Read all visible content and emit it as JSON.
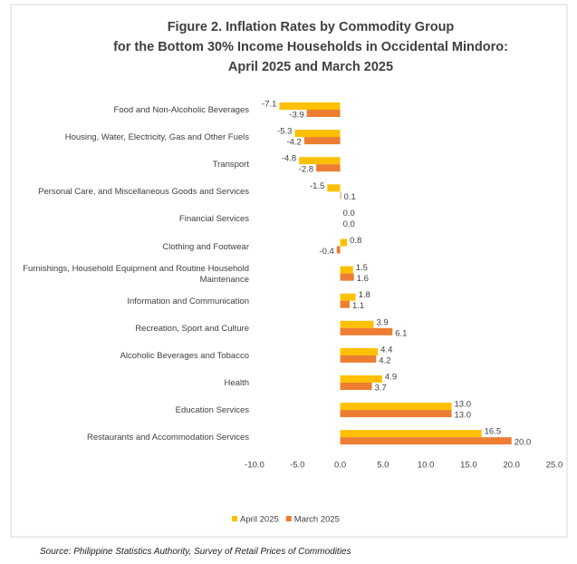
{
  "chart_data": {
    "type": "hbar",
    "title": [
      "Figure 2. Inflation Rates by Commodity Group",
      "for the Bottom 30% Income Households in Occidental Mindoro:",
      "April 2025 and March 2025"
    ],
    "categories": [
      "Food and Non-Alcoholic Beverages",
      "Housing, Water, Electricity, Gas and Other Fuels",
      "Transport",
      "Personal Care, and Miscellaneous Goods and Services",
      "Financial Services",
      "Clothing and Footwear",
      "Furnishings, Household Equipment and Routine Household Maintenance",
      "Information and Communication",
      "Recreation, Sport and Culture",
      "Alcoholic Beverages and Tobacco",
      "Health",
      "Education Services",
      "Restaurants and Accommodation Services"
    ],
    "series": [
      {
        "name": "April 2025",
        "color": "#FFC000",
        "values": [
          -7.1,
          -5.3,
          -4.8,
          -1.5,
          0,
          0.8,
          1.5,
          1.8,
          3.9,
          4.4,
          4.9,
          13,
          16.5
        ],
        "value_labels": [
          "-7.1",
          "-5.3",
          "-4.8",
          "-1.5",
          "0.0",
          "0.8",
          "1.5",
          "1.8",
          "3.9",
          "4.4",
          "4.9",
          "13.0",
          "16.5"
        ]
      },
      {
        "name": "March 2025",
        "color": "#ED7D31",
        "values": [
          -3.9,
          -4.2,
          -2.8,
          0.1,
          0,
          -0.4,
          1.6,
          1.1,
          6.1,
          4.2,
          3.7,
          13,
          20
        ],
        "value_labels": [
          "-3.9",
          "-4.2",
          "-2.8",
          "0.1",
          "0.0",
          "-0.4",
          "1.6",
          "1.1",
          "6.1",
          "4.2",
          "3.7",
          "13.0",
          "20.0"
        ]
      }
    ],
    "xlim": [
      -10,
      25
    ],
    "xticks": [
      {
        "value": -10,
        "label": "-10.0"
      },
      {
        "value": -5,
        "label": "-5.0"
      },
      {
        "value": 0,
        "label": "0.0"
      },
      {
        "value": 5,
        "label": "5.0"
      },
      {
        "value": 10,
        "label": "10.0"
      },
      {
        "value": 15,
        "label": "15.0"
      },
      {
        "value": 20,
        "label": "20.0"
      },
      {
        "value": 25,
        "label": "25.0"
      }
    ],
    "grid": false,
    "legend": "bottom",
    "source": "Source: Philippine Statistics Authority, Survey of Retail Prices of Commodities"
  }
}
